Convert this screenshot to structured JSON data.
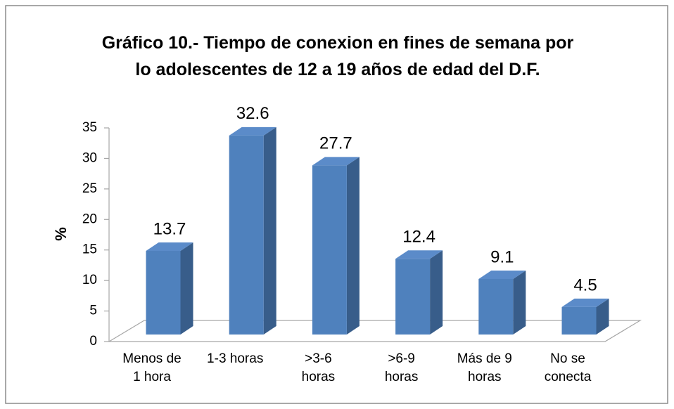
{
  "chart_data": {
    "type": "bar3d",
    "title": "Gráfico 10.- Tiempo de conexion en fines de semana por\nlo adolescentes de 12 a 19 años de edad del D.F.",
    "ylabel": "%",
    "categories": [
      "Menos de\n1 hora",
      "1-3 horas",
      ">3-6\nhoras",
      ">6-9\nhoras",
      "Más de 9\nhoras",
      "No se\nconecta"
    ],
    "values": [
      13.7,
      32.6,
      27.7,
      12.4,
      9.1,
      4.5
    ],
    "color": "#4f81bd",
    "ylim": [
      0,
      35
    ],
    "yticks": [
      0,
      5,
      10,
      15,
      20,
      25,
      30,
      35
    ]
  }
}
